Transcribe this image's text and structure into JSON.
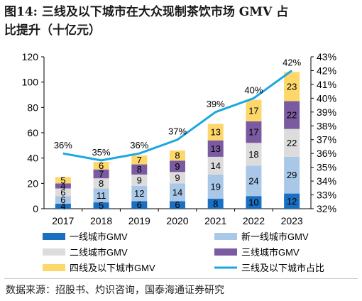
{
  "title": {
    "line1": "图14:  三线及以下城市在大众现制茶饮市场 GMV 占",
    "line2": "比提升（十亿元）"
  },
  "source": "数据来源：招股书、灼识咨询，国泰海通证券研究",
  "chart_data": {
    "type": "bar",
    "stacked": true,
    "categories": [
      "2017",
      "2018",
      "2019",
      "2020",
      "2021",
      "2022",
      "2023"
    ],
    "ylim": [
      0,
      120
    ],
    "yticks": [
      0,
      20,
      40,
      60,
      80,
      100,
      120
    ],
    "y2lim": [
      0.32,
      0.43
    ],
    "y2ticks": [
      "32%",
      "33%",
      "34%",
      "35%",
      "36%",
      "37%",
      "38%",
      "39%",
      "40%",
      "41%",
      "42%",
      "43%"
    ],
    "grid": false,
    "legend_position": "bottom",
    "series": [
      {
        "name": "一线城市GMV",
        "color": "#1a6fc0",
        "values": [
          4,
          5,
          6,
          6,
          8,
          10,
          12
        ],
        "labels": [
          "4",
          "5",
          "6",
          "6",
          "8",
          "10",
          "12"
        ]
      },
      {
        "name": "新一线城市GMV",
        "color": "#a9c8e8",
        "values": [
          6,
          11,
          12,
          14,
          19,
          24,
          29
        ],
        "labels": [
          "6",
          "11",
          "12",
          "14",
          "19",
          "24",
          "29"
        ]
      },
      {
        "name": "二线城市GMV",
        "color": "#dcdcdc",
        "values": [
          6,
          8,
          9,
          9,
          14,
          18,
          22
        ],
        "labels": [
          "6",
          "8",
          "9",
          "9",
          "14",
          "18",
          "22"
        ]
      },
      {
        "name": "三线城市GMV",
        "color": "#7a5aa0",
        "values": [
          4,
          7,
          8,
          9,
          13,
          17,
          22
        ],
        "labels": [
          "4",
          "7",
          "8",
          "9",
          "13",
          "17",
          "22"
        ]
      },
      {
        "name": "四线及以下城市GMV",
        "color": "#fdd76a",
        "values": [
          5,
          6,
          7,
          8,
          13,
          17,
          23
        ],
        "labels": [
          "5",
          "6",
          "7",
          "8",
          "13",
          "17",
          "23"
        ]
      }
    ],
    "line_series": {
      "name": "三线及以下城市占比",
      "color": "#1aa7e0",
      "values": [
        0.36,
        0.355,
        0.36,
        0.37,
        0.39,
        0.4,
        0.42
      ],
      "labels": [
        "36%",
        "35%",
        "36%",
        "37%",
        "39%",
        "40%",
        "42%"
      ]
    }
  }
}
